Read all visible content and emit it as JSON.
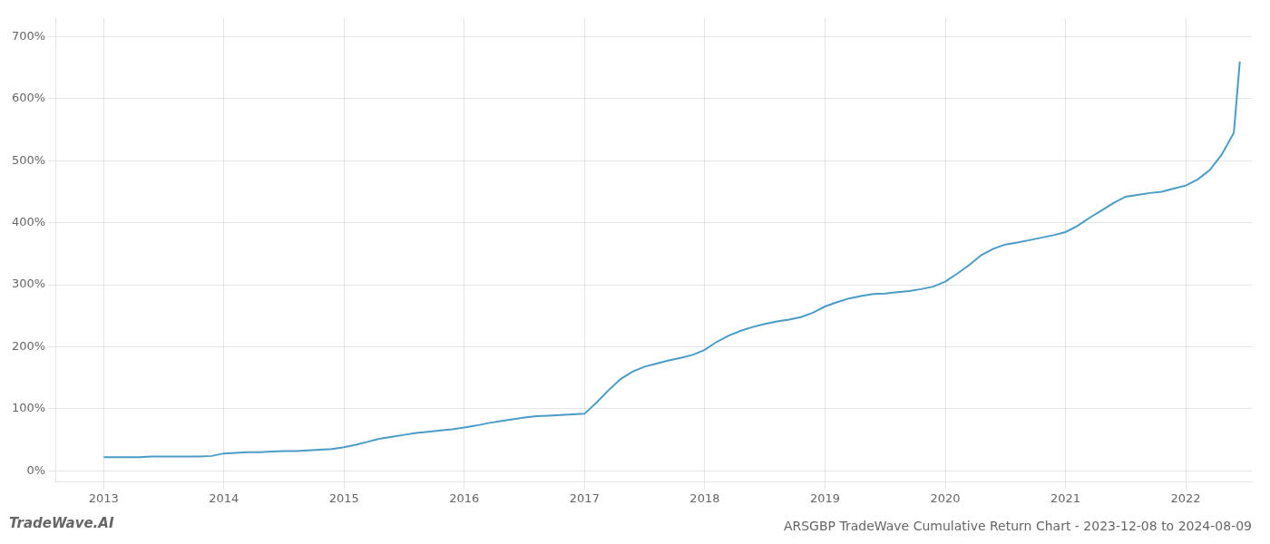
{
  "chart_data": {
    "type": "line",
    "title": "ARSGBP TradeWave Cumulative Return Chart - 2023-12-08 to 2024-08-09",
    "annotations": [
      "TradeWave.AI"
    ],
    "color": "#4a9cc7",
    "grid": true,
    "x": [
      2013.0,
      2013.1,
      2013.2,
      2013.3,
      2013.4,
      2013.5,
      2013.6,
      2013.7,
      2013.8,
      2013.9,
      2014.0,
      2014.1,
      2014.2,
      2014.3,
      2014.4,
      2014.5,
      2014.6,
      2014.7,
      2014.8,
      2014.9,
      2015.0,
      2015.1,
      2015.2,
      2015.3,
      2015.4,
      2015.5,
      2015.6,
      2015.7,
      2015.8,
      2015.9,
      2016.0,
      2016.1,
      2016.2,
      2016.3,
      2016.4,
      2016.5,
      2016.6,
      2016.7,
      2016.8,
      2016.9,
      2017.0,
      2017.1,
      2017.2,
      2017.3,
      2017.4,
      2017.5,
      2017.6,
      2017.7,
      2017.8,
      2017.9,
      2018.0,
      2018.1,
      2018.2,
      2018.3,
      2018.4,
      2018.5,
      2018.6,
      2018.7,
      2018.8,
      2018.9,
      2019.0,
      2019.1,
      2019.2,
      2019.3,
      2019.4,
      2019.5,
      2019.6,
      2019.7,
      2019.8,
      2019.9,
      2020.0,
      2020.1,
      2020.2,
      2020.3,
      2020.4,
      2020.5,
      2020.6,
      2020.7,
      2020.8,
      2020.9,
      2021.0,
      2021.1,
      2021.2,
      2021.3,
      2021.4,
      2021.5,
      2021.6,
      2021.7,
      2021.8,
      2021.9,
      2022.0,
      2022.1,
      2022.2,
      2022.3,
      2022.4,
      2022.45
    ],
    "values": [
      22,
      22,
      22,
      22,
      23,
      23,
      23,
      23,
      23,
      24,
      28,
      29,
      30,
      30,
      31,
      32,
      32,
      33,
      34,
      35,
      38,
      42,
      47,
      52,
      55,
      58,
      61,
      63,
      65,
      67,
      70,
      73,
      77,
      80,
      83,
      86,
      88,
      89,
      90,
      91,
      92,
      110,
      130,
      148,
      160,
      168,
      173,
      178,
      182,
      187,
      195,
      208,
      218,
      226,
      232,
      237,
      241,
      244,
      248,
      255,
      265,
      272,
      278,
      282,
      285,
      286,
      288,
      290,
      293,
      297,
      305,
      318,
      332,
      348,
      358,
      365,
      368,
      372,
      376,
      380,
      385,
      395,
      408,
      420,
      432,
      442,
      445,
      448,
      450,
      455,
      460,
      470,
      485,
      510,
      545,
      660
    ],
    "xlim": [
      2012.6,
      2022.55
    ],
    "xticks": [
      2013,
      2014,
      2015,
      2016,
      2017,
      2018,
      2019,
      2020,
      2021,
      2022
    ],
    "ylim": [
      -18,
      730
    ],
    "yticks": [
      {
        "value": 0,
        "label": "0%"
      },
      {
        "value": 100,
        "label": "100%"
      },
      {
        "value": 200,
        "label": "200%"
      },
      {
        "value": 300,
        "label": "300%"
      },
      {
        "value": 400,
        "label": "400%"
      },
      {
        "value": 500,
        "label": "500%"
      },
      {
        "value": 600,
        "label": "600%"
      },
      {
        "value": 700,
        "label": "700%"
      }
    ]
  }
}
